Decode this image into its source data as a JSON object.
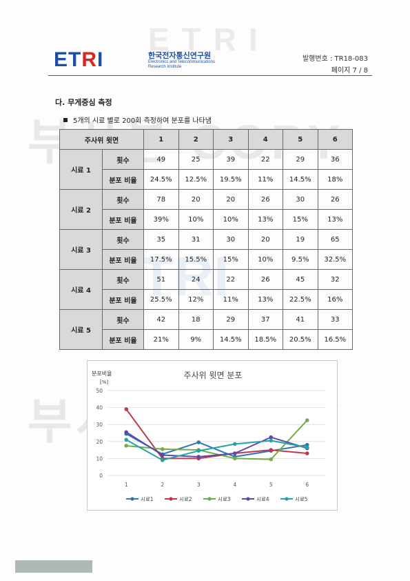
{
  "header": {
    "logo_text_main": "ET",
    "logo_text_r": "R",
    "logo_text_i": "I",
    "org_name_kr": "한국전자통신연구원",
    "org_name_en_1": "Electronics and Telecommunications",
    "org_name_en_2": "Research Institute",
    "doc_number": "발행번호 : TR18-083",
    "page_number": "페이지 7 / 8"
  },
  "watermark": {
    "copy_text": "부사본 COPY",
    "etri_text": "ETRI"
  },
  "section": {
    "title": "다. 무게중심 측정",
    "bullet": "5개의 시료 별로 200회 측정하여 분포를 나타냄"
  },
  "table": {
    "header_label": "주사위 윗면",
    "faces": [
      "1",
      "2",
      "3",
      "4",
      "5",
      "6"
    ],
    "count_label": "횟수",
    "ratio_label": "분포 비율",
    "samples": [
      {
        "name": "시료 1",
        "counts": [
          "49",
          "25",
          "39",
          "22",
          "29",
          "36"
        ],
        "ratios": [
          "24.5%",
          "12.5%",
          "19.5%",
          "11%",
          "14.5%",
          "18%"
        ]
      },
      {
        "name": "시료 2",
        "counts": [
          "78",
          "20",
          "20",
          "26",
          "30",
          "26"
        ],
        "ratios": [
          "39%",
          "10%",
          "10%",
          "13%",
          "15%",
          "13%"
        ]
      },
      {
        "name": "시료 3",
        "counts": [
          "35",
          "31",
          "30",
          "20",
          "19",
          "65"
        ],
        "ratios": [
          "17.5%",
          "15.5%",
          "15%",
          "10%",
          "9.5%",
          "32.5%"
        ]
      },
      {
        "name": "시료 4",
        "counts": [
          "51",
          "24",
          "22",
          "26",
          "45",
          "32"
        ],
        "ratios": [
          "25.5%",
          "12%",
          "11%",
          "13%",
          "22.5%",
          "16%"
        ]
      },
      {
        "name": "시료 5",
        "counts": [
          "42",
          "18",
          "29",
          "37",
          "41",
          "33"
        ],
        "ratios": [
          "21%",
          "9%",
          "14.5%",
          "18.5%",
          "20.5%",
          "16.5%"
        ]
      }
    ]
  },
  "chart_data": {
    "type": "line",
    "title": "주사위 윗면 분포",
    "ylabel": "분포비율",
    "yunit": "[%]",
    "xlabel": "",
    "x": [
      1,
      2,
      3,
      4,
      5,
      6
    ],
    "ylim": [
      0,
      50
    ],
    "yticks": [
      0,
      10,
      20,
      30,
      40,
      50
    ],
    "grid": true,
    "legend_position": "bottom",
    "series": [
      {
        "name": "시료1",
        "color": "#2e75b6",
        "values": [
          24.5,
          12.5,
          19.5,
          11,
          14.5,
          18
        ]
      },
      {
        "name": "시료2",
        "color": "#c0394b",
        "values": [
          39,
          10,
          10,
          13,
          15,
          13
        ]
      },
      {
        "name": "시료3",
        "color": "#70ad47",
        "values": [
          17.5,
          15.5,
          15,
          10,
          9.5,
          32.5
        ]
      },
      {
        "name": "시료4",
        "color": "#5b4aa8",
        "values": [
          25.5,
          12,
          11,
          13,
          22.5,
          16
        ]
      },
      {
        "name": "시료5",
        "color": "#23a3a3",
        "values": [
          21,
          9,
          14.5,
          18.5,
          20.5,
          16.5
        ]
      }
    ]
  }
}
